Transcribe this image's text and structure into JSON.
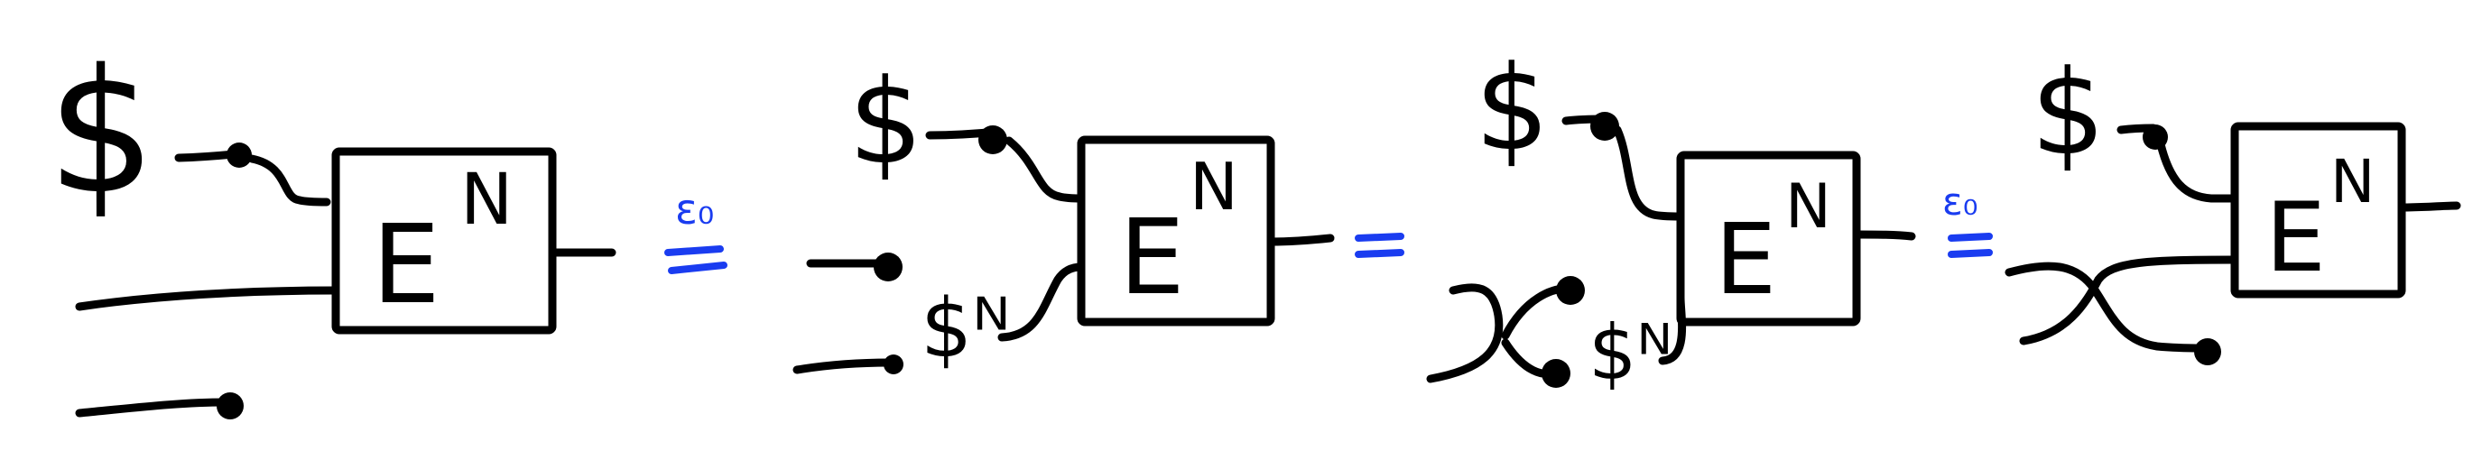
{
  "colors": {
    "ink": "#000000",
    "accent": "#1a3cf0"
  },
  "symbols": {
    "dollar": "$",
    "dollar_n": "$ᴺ",
    "box_label": "E",
    "box_superscript": "N",
    "eq_sign": "=",
    "eps_label": "ε₀"
  },
  "relations": [
    "ε₀",
    "=",
    "ε₀"
  ]
}
